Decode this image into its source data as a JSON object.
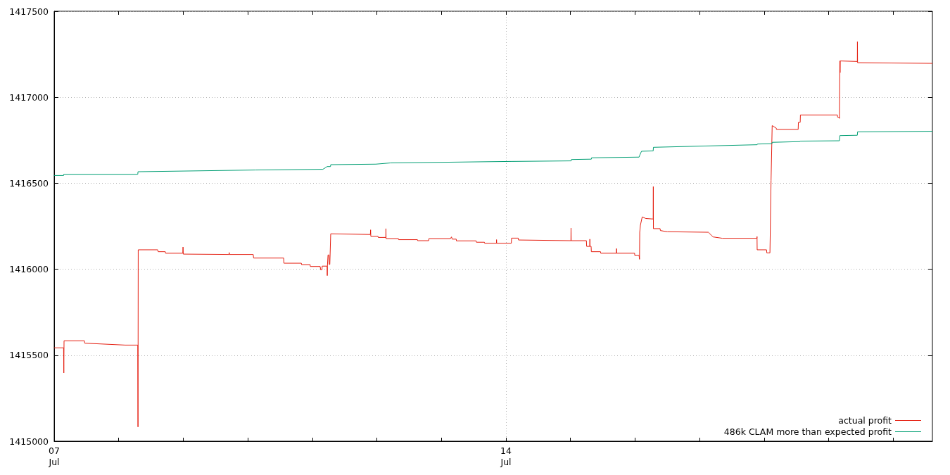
{
  "chart_data": {
    "type": "line",
    "line_style": "solid",
    "grid": true,
    "legend": "bottom right",
    "xlim": [
      "--07-07",
      "--07-20T14:35"
    ],
    "xticks": [
      {
        "value": "--07-07",
        "label": "07\nJul"
      },
      {
        "value": "--07-08",
        "label": null
      },
      {
        "value": "--07-09",
        "label": null
      },
      {
        "value": "--07-10",
        "label": null
      },
      {
        "value": "--07-11",
        "label": null
      },
      {
        "value": "--07-12",
        "label": null
      },
      {
        "value": "--07-13",
        "label": null
      },
      {
        "value": "--07-14",
        "label": "14\nJul"
      },
      {
        "value": "--07-15",
        "label": null
      },
      {
        "value": "--07-16",
        "label": null
      },
      {
        "value": "--07-17",
        "label": null
      },
      {
        "value": "--07-18",
        "label": null
      },
      {
        "value": "--07-19",
        "label": null
      },
      {
        "value": "--07-20",
        "label": null
      }
    ],
    "ylim": [
      1415000,
      1417500
    ],
    "yticks": [
      1415000,
      1415500,
      1416000,
      1416500,
      1417000,
      1417500
    ],
    "series": [
      {
        "name": "actual profit",
        "color": "#e51e10",
        "x": [
          "--07-07T00:00",
          "--07-07T03:30",
          "--07-07T03:35",
          "--07-07T03:40",
          "--07-07T11:15",
          "--07-07T11:20",
          "--07-08T02:25",
          "--07-08T07:05",
          "--07-08T07:10",
          "--07-08T07:15",
          "--07-08T14:30",
          "--07-08T14:40",
          "--07-08T17:20",
          "--07-08T17:25",
          "--07-08T23:50",
          "--07-08T23:55",
          "--07-09T00:00",
          "--07-09T17:00",
          "--07-09T17:05",
          "--07-09T17:10",
          "--07-10T02:00",
          "--07-10T02:10",
          "--07-10T13:20",
          "--07-10T13:25",
          "--07-10T19:55",
          "--07-10T20:00",
          "--07-10T23:10",
          "--07-10T23:15",
          "--07-11T02:55",
          "--07-11T03:05",
          "--07-11T03:35",
          "--07-11T03:40",
          "--07-11T05:30",
          "--07-11T05:33",
          "--07-11T05:36",
          "--07-11T05:50",
          "--07-11T06:10",
          "--07-11T06:15",
          "--07-11T06:30",
          "--07-11T06:50",
          "--07-11T21:35",
          "--07-11T21:40",
          "--07-11T21:45",
          "--07-12T00:25",
          "--07-12T00:30",
          "--07-12T03:20",
          "--07-12T03:22",
          "--07-12T03:25",
          "--07-12T08:00",
          "--07-12T08:05",
          "--07-12T15:05",
          "--07-12T15:10",
          "--07-12T19:15",
          "--07-12T19:20",
          "--07-13T03:20",
          "--07-13T03:45",
          "--07-13T04:00",
          "--07-13T05:30",
          "--07-13T05:35",
          "--07-13T12:55",
          "--07-13T13:00",
          "--07-13T16:00",
          "--07-13T16:05",
          "--07-13T20:28",
          "--07-13T20:30",
          "--07-13T20:33",
          "--07-14T02:00",
          "--07-14T02:05",
          "--07-14T04:35",
          "--07-14T04:40",
          "--07-15T00:10",
          "--07-15T00:12",
          "--07-15T00:15",
          "--07-15T05:55",
          "--07-15T06:00",
          "--07-15T07:10",
          "--07-15T07:12",
          "--07-15T07:15",
          "--07-15T07:40",
          "--07-15T07:45",
          "--07-15T11:10",
          "--07-15T11:15",
          "--07-15T17:05",
          "--07-15T17:07",
          "--07-15T17:10",
          "--07-15T23:50",
          "--07-15T23:55",
          "--07-16T01:30",
          "--07-16T01:40",
          "--07-16T01:45",
          "--07-16T02:00",
          "--07-16T02:40",
          "--07-16T04:00",
          "--07-16T06:45",
          "--07-16T06:48",
          "--07-16T06:50",
          "--07-16T09:20",
          "--07-16T09:25",
          "--07-16T12:00",
          "--07-17T03:15",
          "--07-17T05:00",
          "--07-17T08:30",
          "--07-17T21:20",
          "--07-17T21:22",
          "--07-17T21:25",
          "--07-18T00:55",
          "--07-18T01:00",
          "--07-18T02:10",
          "--07-18T02:35",
          "--07-18T03:00",
          "--07-18T04:30",
          "--07-18T04:35",
          "--07-18T12:40",
          "--07-18T12:45",
          "--07-18T13:25",
          "--07-18T13:30",
          "--07-19T03:15",
          "--07-19T03:20",
          "--07-19T03:55",
          "--07-19T04:00",
          "--07-19T04:05",
          "--07-19T04:10",
          "--07-19T04:15",
          "--07-19T04:20",
          "--07-19T10:40",
          "--07-19T10:42",
          "--07-19T10:45",
          "--07-20T14:30"
        ],
        "values": [
          1415543,
          1415543,
          1415397,
          1415584,
          1415584,
          1415570,
          1415559,
          1415559,
          1415083,
          1416113,
          1416113,
          1416102,
          1416102,
          1416093,
          1416093,
          1416129,
          1416088,
          1416086,
          1416097,
          1416086,
          1416086,
          1416065,
          1416065,
          1416035,
          1416035,
          1416027,
          1416027,
          1416016,
          1416016,
          1415997,
          1415997,
          1416018,
          1416018,
          1415963,
          1416018,
          1416083,
          1416083,
          1416028,
          1416028,
          1416206,
          1416202,
          1416229,
          1416191,
          1416191,
          1416185,
          1416185,
          1416236,
          1416178,
          1416178,
          1416172,
          1416172,
          1416166,
          1416166,
          1416178,
          1416178,
          1416188,
          1416175,
          1416175,
          1416165,
          1416165,
          1416157,
          1416157,
          1416151,
          1416151,
          1416172,
          1416151,
          1416151,
          1416181,
          1416181,
          1416170,
          1416166,
          1416239,
          1416166,
          1416166,
          1416133,
          1416133,
          1416175,
          1416133,
          1416133,
          1416102,
          1416102,
          1416093,
          1416093,
          1416120,
          1416093,
          1416093,
          1416080,
          1416080,
          1416058,
          1416215,
          1416256,
          1416304,
          1416295,
          1416292,
          1416481,
          1416236,
          1416236,
          1416225,
          1416218,
          1416215,
          1416188,
          1416180,
          1416180,
          1416190,
          1416113,
          1416113,
          1416095,
          1416095,
          1416515,
          1416835,
          1416821,
          1416813,
          1416813,
          1416854,
          1416854,
          1416897,
          1416897,
          1416884,
          1416884,
          1416877,
          1416877,
          1417211,
          1417143,
          1417211,
          1417208,
          1417323,
          1417201,
          1417197
        ]
      },
      {
        "name": "486k CLAM more than expected profit",
        "color": "#009e73",
        "x": [
          "--07-07T00:00",
          "--07-07T03:30",
          "--07-07T03:35",
          "--07-08T07:05",
          "--07-08T07:10",
          "--07-10T02:55",
          "--07-11T03:55",
          "--07-11T05:30",
          "--07-11T06:45",
          "--07-11T06:50",
          "--07-11T23:35",
          "--07-12T05:00",
          "--07-14T02:20",
          "--07-15T00:15",
          "--07-15T00:20",
          "--07-15T07:45",
          "--07-15T07:50",
          "--07-16T01:30",
          "--07-16T01:40",
          "--07-16T02:25",
          "--07-16T06:45",
          "--07-16T06:50",
          "--07-17T21:25",
          "--07-17T21:30",
          "--07-18T02:55",
          "--07-18T03:00",
          "--07-18T13:20",
          "--07-18T13:25",
          "--07-19T04:00",
          "--07-19T04:10",
          "--07-19T10:40",
          "--07-19T10:45",
          "--07-20T14:30"
        ],
        "values": [
          1416545,
          1416545,
          1416552,
          1416552,
          1416567,
          1416577,
          1416581,
          1416597,
          1416597,
          1416608,
          1416611,
          1416618,
          1416627,
          1416630,
          1416638,
          1416640,
          1416648,
          1416652,
          1416660,
          1416686,
          1416688,
          1416709,
          1416724,
          1416728,
          1416730,
          1416738,
          1416742,
          1416745,
          1416747,
          1416777,
          1416779,
          1416799,
          1416802
        ]
      }
    ]
  }
}
